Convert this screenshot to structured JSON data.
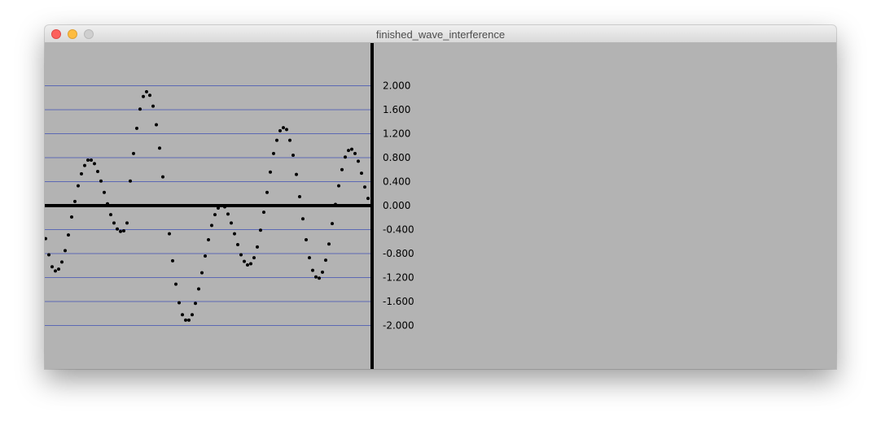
{
  "window": {
    "title": "finished_wave_interference",
    "controls": [
      "close",
      "minimize",
      "zoom"
    ]
  },
  "colors": {
    "canvas_background": "#b3b3b3",
    "grid_line": "#3f51b5",
    "axis": "#000000",
    "point": "#000000"
  },
  "chart_data": {
    "type": "scatter",
    "title": "",
    "xlabel": "",
    "ylabel": "",
    "ylim": [
      -2.4,
      2.4
    ],
    "y_ticks": [
      2.0,
      1.6,
      1.2,
      0.8,
      0.4,
      0.0,
      -0.4,
      -0.8,
      -1.2,
      -1.6,
      -2.0
    ],
    "y_tick_labels": [
      "2.000",
      "1.600",
      "1.200",
      "0.800",
      "0.400",
      "0.000",
      "-0.400",
      "-0.800",
      "-1.200",
      "-1.600",
      "-2.000"
    ],
    "grid": true,
    "series": [
      {
        "x": [
          0,
          4,
          8,
          12,
          16,
          20,
          24,
          28,
          32,
          36,
          40,
          44,
          48,
          52,
          56,
          60,
          64,
          68,
          72,
          76,
          80,
          84,
          88,
          92,
          96,
          100,
          104,
          108,
          112,
          116,
          120,
          124,
          128,
          132,
          136,
          140,
          144,
          148,
          152,
          156,
          160,
          164,
          168,
          172,
          176,
          180,
          184,
          188,
          192,
          196,
          200,
          204,
          208,
          212,
          216,
          220,
          224,
          228,
          232,
          236,
          240,
          244,
          248,
          252,
          256,
          260,
          264,
          268,
          272,
          276,
          280,
          284,
          288,
          292,
          296,
          300,
          304,
          308,
          312,
          316,
          320,
          324,
          328,
          332,
          336,
          340,
          344,
          348,
          352,
          356,
          360,
          364,
          368,
          372,
          376,
          380,
          384,
          388,
          392,
          396
        ],
        "y": [
          -0.55,
          -0.82,
          -1.02,
          -1.09,
          -1.06,
          -0.94,
          -0.75,
          -0.49,
          -0.19,
          0.07,
          0.33,
          0.53,
          0.67,
          0.76,
          0.76,
          0.7,
          0.57,
          0.41,
          0.22,
          0.03,
          -0.15,
          -0.29,
          -0.39,
          -0.43,
          -0.42,
          -0.29,
          0.41,
          0.87,
          1.29,
          1.61,
          1.82,
          1.9,
          1.84,
          1.66,
          1.35,
          0.96,
          0.48,
          0.0,
          -0.47,
          -0.92,
          -1.31,
          -1.62,
          -1.82,
          -1.91,
          -1.91,
          -1.82,
          -1.63,
          -1.39,
          -1.12,
          -0.84,
          -0.57,
          -0.33,
          -0.15,
          -0.04,
          0.0,
          -0.02,
          -0.14,
          -0.29,
          -0.47,
          -0.65,
          -0.82,
          -0.93,
          -0.99,
          -0.97,
          -0.87,
          -0.69,
          -0.41,
          -0.11,
          0.22,
          0.56,
          0.87,
          1.09,
          1.25,
          1.3,
          1.27,
          1.09,
          0.84,
          0.52,
          0.15,
          -0.22,
          -0.57,
          -0.87,
          -1.08,
          -1.19,
          -1.21,
          -1.11,
          -0.91,
          -0.64,
          -0.3,
          0.02,
          0.33,
          0.6,
          0.81,
          0.92,
          0.94,
          0.87,
          0.74,
          0.54,
          0.31,
          0.12
        ]
      }
    ]
  }
}
